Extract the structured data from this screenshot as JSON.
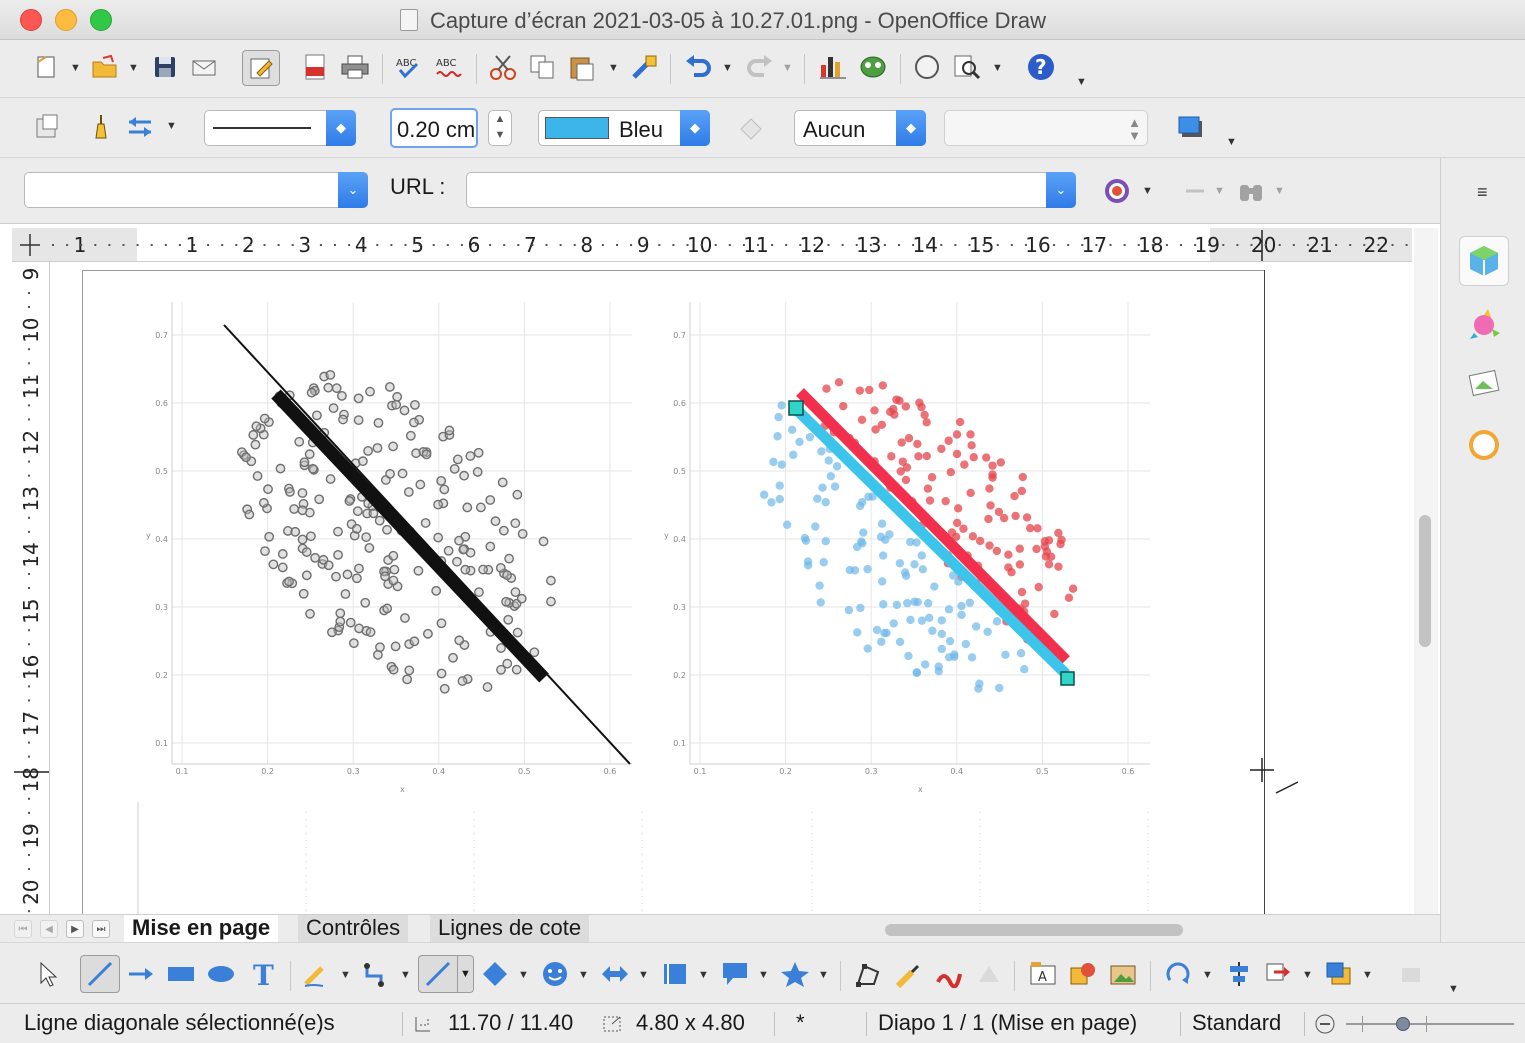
{
  "window": {
    "title": "Capture d’écran 2021-03-05 à 10.27.01.png - OpenOffice Draw"
  },
  "toolbar_line": {
    "line_width_value": "0.20 cm",
    "line_color_name": "Bleu",
    "line_color_hex": "#3cb6ea",
    "area_style_value": "Aucun",
    "area_fill_value": ""
  },
  "toolbar_hyperlink": {
    "text_value": "",
    "url_label": "URL :",
    "url_value": ""
  },
  "ruler_horizontal": [
    "1",
    "1",
    "2",
    "3",
    "4",
    "5",
    "6",
    "7",
    "8",
    "9",
    "10",
    "11",
    "12",
    "13",
    "14",
    "15",
    "16",
    "17",
    "18",
    "19",
    "20",
    "21",
    "22"
  ],
  "ruler_vertical": [
    "9",
    "10",
    "11",
    "12",
    "13",
    "14",
    "15",
    "16",
    "17",
    "18",
    "19",
    "20"
  ],
  "image_axes": {
    "y_ticks": [
      "0.7",
      "0.6",
      "0.5",
      "0.4",
      "0.3",
      "0.2",
      "0.1"
    ],
    "x_ticks": [
      "0.1",
      "0.2",
      "0.3",
      "0.4",
      "0.5",
      "0.6"
    ],
    "y_label": "y",
    "x_label": "x"
  },
  "plot_colors": {
    "gray_point": "#6e6e6e",
    "red_point": "#e4444b",
    "blue_point": "#6db8ea",
    "red_line": "#f2304d",
    "blue_line": "#3cc4ea",
    "handle_fill": "#2fd6c8"
  },
  "sheet_tabs": {
    "tabs": [
      "Mise en page",
      "Contrôles",
      "Lignes de cote"
    ],
    "active_index": 0
  },
  "status": {
    "message": "Ligne diagonale sélectionné(e)s",
    "position": "11.70 / 11.40",
    "size": "4.80 x 4.80",
    "modified": "*",
    "slide": "Diapo 1 / 1 (Mise en page)",
    "master": "Standard"
  },
  "icons": {
    "toolbar1": [
      "new-icon",
      "open-icon",
      "save-icon",
      "email-icon",
      "edit-file-icon",
      "pdf-icon",
      "print-icon",
      "spellcheck-icon",
      "autospell-icon",
      "cut-icon",
      "copy-icon",
      "paste-icon",
      "clone-format-icon",
      "undo-icon",
      "redo-icon",
      "chart-icon",
      "gallery-icon",
      "navigator-icon",
      "zoom-icon",
      "help-icon"
    ],
    "sidebar": [
      "properties-icon",
      "styles-icon",
      "gallery-icon",
      "navigator-icon"
    ]
  }
}
